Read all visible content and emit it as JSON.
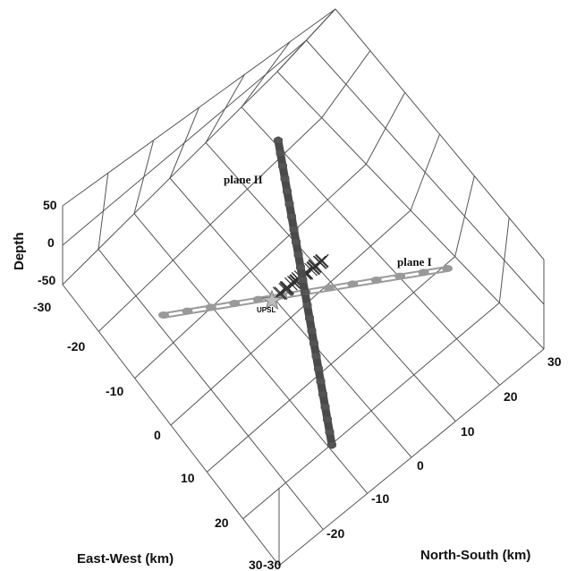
{
  "chart_data": {
    "type": "scatter",
    "title": "",
    "axes": {
      "x_label": "East-West (km)",
      "y_label": "North-South (km)",
      "z_label": "Depth",
      "x_ticks": [
        "-30",
        "-20",
        "-10",
        "0",
        "10",
        "20",
        "30"
      ],
      "y_ticks": [
        "-30",
        "-20",
        "-10",
        "0",
        "10",
        "20",
        "30"
      ],
      "z_ticks": [
        "50",
        "0",
        "-50"
      ],
      "x_range": [
        -30,
        30
      ],
      "y_range": [
        -30,
        30
      ],
      "z_range": [
        -50,
        50
      ],
      "grid": true,
      "view": "perspective 3D box"
    },
    "series": [
      {
        "name": "plane I",
        "kind": "fault-plane-trace",
        "color": "#a0a0a0"
      },
      {
        "name": "plane II",
        "kind": "fault-plane-trace",
        "color": "#555555"
      },
      {
        "name": "UPSL",
        "kind": "station",
        "marker": "star"
      }
    ],
    "events": [
      [
        -8,
        1
      ],
      [
        -6,
        2
      ],
      [
        -5,
        0
      ],
      [
        -4,
        3
      ],
      [
        -7,
        -2
      ],
      [
        -3,
        1
      ],
      [
        -2,
        4
      ],
      [
        -1,
        2
      ],
      [
        -6,
        4
      ],
      [
        -4,
        -1
      ],
      [
        -2,
        0
      ],
      [
        0,
        3
      ],
      [
        1,
        5
      ],
      [
        -3,
        5
      ],
      [
        -5,
        3
      ],
      [
        -1,
        -1
      ],
      [
        2,
        2
      ],
      [
        -7,
        3
      ],
      [
        -3,
        -2
      ],
      [
        0,
        0
      ],
      [
        3,
        4
      ],
      [
        5,
        6
      ],
      [
        4,
        3
      ],
      [
        -2,
        6
      ],
      [
        -4,
        6
      ],
      [
        1,
        -1
      ],
      [
        2,
        5
      ],
      [
        -6,
        -1
      ]
    ],
    "station": {
      "label": "UPSL",
      "x": -10,
      "y": -3
    }
  }
}
